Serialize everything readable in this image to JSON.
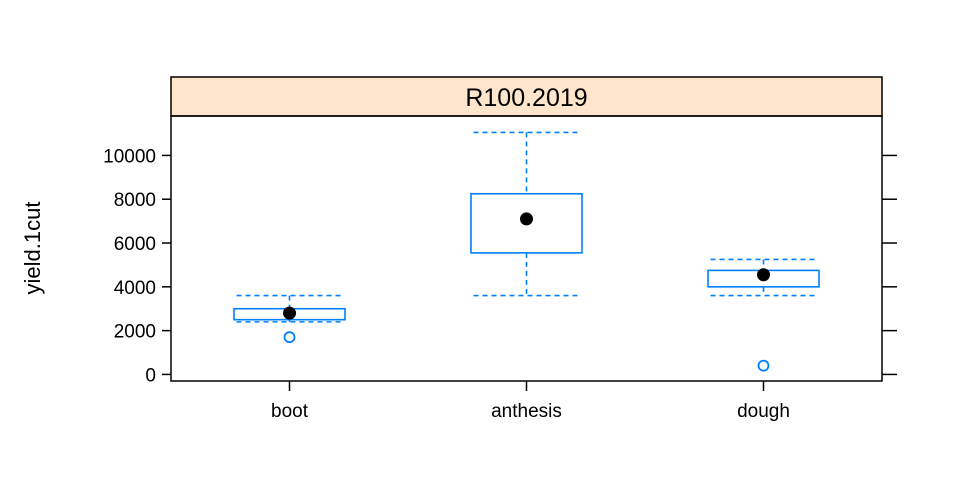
{
  "chart_data": {
    "type": "box",
    "strip_label": "R100.2019",
    "ylabel": "yield.1cut",
    "xlabel": "",
    "ylim": [
      -300,
      11800
    ],
    "yticks": [
      0,
      2000,
      4000,
      6000,
      8000,
      10000
    ],
    "categories": [
      "boot",
      "anthesis",
      "dough"
    ],
    "boxes": [
      {
        "category": "boot",
        "whisker_low": 2400,
        "q1": 2500,
        "median": 2800,
        "q3": 3000,
        "whisker_high": 3600,
        "mean": 2800,
        "outliers": [
          1700
        ]
      },
      {
        "category": "anthesis",
        "whisker_low": 3600,
        "q1": 5550,
        "median": 7100,
        "q3": 8250,
        "whisker_high": 11050,
        "mean": 7100,
        "outliers": []
      },
      {
        "category": "dough",
        "whisker_low": 3600,
        "q1": 4000,
        "median": 4550,
        "q3": 4750,
        "whisker_high": 5250,
        "mean": 4550,
        "outliers": [
          400
        ]
      }
    ],
    "colors": {
      "box": "#0080ff",
      "mean": "#000000",
      "strip": "#ffe5cc"
    },
    "grid": false,
    "legend": "none"
  }
}
